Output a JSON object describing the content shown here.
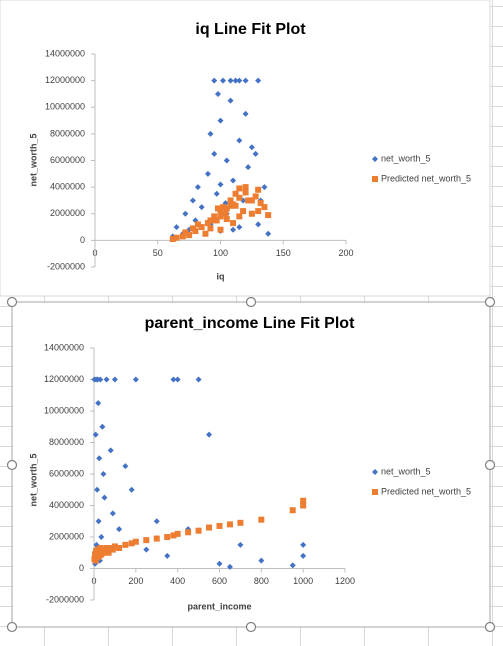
{
  "chart_data": [
    {
      "type": "scatter",
      "title": "iq Line Fit  Plot",
      "x_label": "iq",
      "y_label": "net_worth_5",
      "legend": "right",
      "xlim": [
        0,
        200
      ],
      "xticks": [
        0,
        50,
        100,
        150,
        200
      ],
      "ylim": [
        -2000000,
        14000000
      ],
      "yticks": [
        -2000000,
        0,
        2000000,
        4000000,
        6000000,
        8000000,
        10000000,
        12000000,
        14000000
      ],
      "x": [
        62,
        65,
        70,
        72,
        75,
        78,
        80,
        82,
        85,
        88,
        90,
        92,
        95,
        97,
        100,
        100,
        102,
        105,
        105,
        108,
        110,
        110,
        112,
        115,
        115,
        118,
        120,
        122,
        125,
        128,
        130,
        130,
        132,
        135,
        138,
        92,
        98,
        104,
        112,
        120,
        125,
        108,
        95,
        100,
        115
      ],
      "series": [
        {
          "name": "net_worth_5",
          "color": "#4472c4",
          "marker": "diamond",
          "values": [
            300000,
            1000000,
            500000,
            2000000,
            800000,
            3000000,
            1500000,
            4000000,
            2500000,
            500000,
            5000000,
            1200000,
            12000000,
            3500000,
            9000000,
            700000,
            12000000,
            6000000,
            2000000,
            10500000,
            4500000,
            800000,
            12000000,
            7500000,
            1000000,
            3000000,
            12000000,
            5500000,
            2000000,
            6500000,
            1200000,
            12000000,
            3000000,
            4000000,
            500000,
            8000000,
            11000000,
            2800000,
            3500000,
            9500000,
            7000000,
            12000000,
            6500000,
            4200000,
            12000000
          ]
        },
        {
          "name": "Predicted net_worth_5",
          "color": "#ed7d31",
          "marker": "square",
          "values": [
            100000,
            200000,
            300000,
            600000,
            400000,
            900000,
            700000,
            1200000,
            1000000,
            500000,
            1300000,
            900000,
            1800000,
            1500000,
            2200000,
            800000,
            2500000,
            2400000,
            1600000,
            3000000,
            2700000,
            1300000,
            3500000,
            3200000,
            1800000,
            2200000,
            4000000,
            3000000,
            2000000,
            3300000,
            2200000,
            3800000,
            2800000,
            2500000,
            1900000,
            1500000,
            2400000,
            2000000,
            2600000,
            3600000,
            3000000,
            2600000,
            1500000,
            1800000,
            3900000
          ]
        }
      ]
    },
    {
      "type": "scatter",
      "title": "parent_income Line Fit  Plot",
      "x_label": "parent_income",
      "y_label": "net_worth_5",
      "legend": "right",
      "xlim": [
        0,
        1200
      ],
      "xticks": [
        0,
        200,
        400,
        600,
        800,
        1000,
        1200
      ],
      "ylim": [
        -2000000,
        14000000
      ],
      "yticks": [
        -2000000,
        0,
        2000000,
        4000000,
        6000000,
        8000000,
        10000000,
        12000000,
        14000000
      ],
      "x": [
        2,
        5,
        8,
        10,
        12,
        15,
        18,
        20,
        22,
        25,
        28,
        30,
        35,
        40,
        45,
        50,
        60,
        70,
        80,
        90,
        100,
        120,
        150,
        180,
        200,
        250,
        300,
        350,
        380,
        400,
        450,
        500,
        550,
        600,
        650,
        700,
        800,
        950,
        1000,
        1000
      ],
      "series": [
        {
          "name": "net_worth_5",
          "color": "#4472c4",
          "marker": "diamond",
          "values": [
            12000000,
            300000,
            8500000,
            12000000,
            1500000,
            5000000,
            12000000,
            10500000,
            3000000,
            7000000,
            500000,
            12000000,
            2000000,
            9000000,
            6000000,
            4500000,
            12000000,
            1000000,
            7500000,
            3500000,
            12000000,
            2500000,
            6500000,
            5000000,
            12000000,
            1200000,
            3000000,
            800000,
            12000000,
            12000000,
            2500000,
            12000000,
            8500000,
            300000,
            100000,
            1500000,
            500000,
            200000,
            1500000,
            800000
          ]
        },
        {
          "name": "Predicted net_worth_5",
          "color": "#ed7d31",
          "marker": "square",
          "values": [
            600000,
            900000,
            500000,
            1100000,
            700000,
            800000,
            1200000,
            900000,
            750000,
            1000000,
            850000,
            1300000,
            900000,
            1100000,
            1000000,
            1200000,
            1300000,
            1000000,
            1300000,
            1200000,
            1400000,
            1300000,
            1500000,
            1600000,
            1700000,
            1800000,
            1900000,
            2000000,
            2100000,
            2200000,
            2300000,
            2400000,
            2600000,
            2700000,
            2800000,
            2900000,
            3100000,
            3700000,
            4000000,
            4300000
          ]
        }
      ]
    }
  ]
}
